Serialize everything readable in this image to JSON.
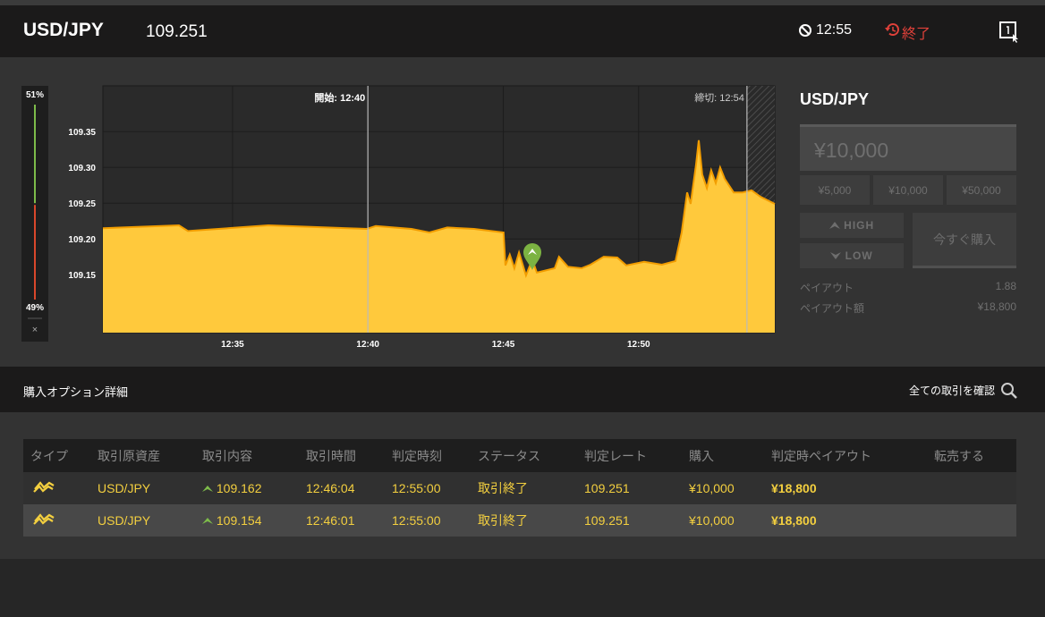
{
  "header": {
    "symbol": "USD/JPY",
    "rate": "109.251",
    "time": "12:55",
    "status": "終了"
  },
  "chart_data": {
    "type": "area",
    "color": "#ffc93c",
    "line_color": "#f29d00",
    "x": [
      30.21,
      33.02,
      33.35,
      36.32,
      39.96,
      40.29,
      41.61,
      42.27,
      42.93,
      43.92,
      45.01,
      45.08,
      45.24,
      45.41,
      45.58,
      45.84,
      46.07,
      46.24,
      46.9,
      47.06,
      47.39,
      47.89,
      48.22,
      48.71,
      49.21,
      49.54,
      50.2,
      50.86,
      51.36,
      51.59,
      51.79,
      51.92,
      52.12,
      52.22,
      52.35,
      52.52,
      52.68,
      52.85,
      53.01,
      53.18,
      53.51,
      53.84,
      54.17,
      54.5,
      55.03
    ],
    "values": [
      109.215,
      109.219,
      109.211,
      109.219,
      109.214,
      109.218,
      109.214,
      109.209,
      109.216,
      109.214,
      109.209,
      109.163,
      109.178,
      109.159,
      109.181,
      109.149,
      109.171,
      109.153,
      109.159,
      109.175,
      109.161,
      109.159,
      109.164,
      109.175,
      109.174,
      109.163,
      109.168,
      109.164,
      109.169,
      109.209,
      109.265,
      109.249,
      109.303,
      109.338,
      109.29,
      109.271,
      109.296,
      109.278,
      109.3,
      109.284,
      109.265,
      109.265,
      109.268,
      109.259,
      109.249
    ],
    "xlim": [
      30.21,
      55.03
    ],
    "xticks": [
      {
        "value": 35,
        "label": "12:35"
      },
      {
        "value": 40,
        "label": "12:40"
      },
      {
        "value": 45,
        "label": "12:45"
      },
      {
        "value": 50,
        "label": "12:50"
      }
    ],
    "ylim": [
      109.069,
      109.414
    ],
    "yticks": [
      109.35,
      {
        "value": 109.3,
        "label": "109.30"
      },
      109.25,
      {
        "value": 109.2,
        "label": "109.20"
      },
      109.15
    ],
    "grid": true,
    "markers": [
      {
        "label": "開始: 12:40",
        "x": 40
      },
      {
        "label": "締切: 12:54",
        "x": 54
      }
    ]
  },
  "sentiment": {
    "high": {
      "value": 51,
      "label": "51%"
    },
    "low": {
      "value": 49,
      "label": "49%"
    },
    "close": "×"
  },
  "trade_panel": {
    "symbol": "USD/JPY",
    "amount": "¥10,000",
    "presets": [
      "¥5,000",
      "¥10,000",
      "¥50,000"
    ],
    "high": "HIGH",
    "low": "LOW",
    "buy": "今すぐ購入",
    "payout_label": "ペイアウト",
    "payout": "1.88",
    "payout_amount_label": "ペイアウト額",
    "payout_amount": "¥18,800"
  },
  "section": {
    "title": "購入オプション詳細",
    "link": "全ての取引を確認"
  },
  "table": {
    "headers": [
      "タイプ",
      "取引原資産",
      "取引内容",
      "取引時間",
      "判定時刻",
      "ステータス",
      "判定レート",
      "購入",
      "判定時ペイアウト",
      "転売する"
    ],
    "rows": [
      [
        "USD/JPY",
        "109.162",
        "12:46:04",
        "12:55:00",
        "取引終了",
        "109.251",
        "¥10,000",
        "¥18,800"
      ],
      [
        "USD/JPY",
        "109.154",
        "12:46:01",
        "12:55:00",
        "取引終了",
        "109.251",
        "¥10,000",
        "¥18,800"
      ]
    ]
  }
}
